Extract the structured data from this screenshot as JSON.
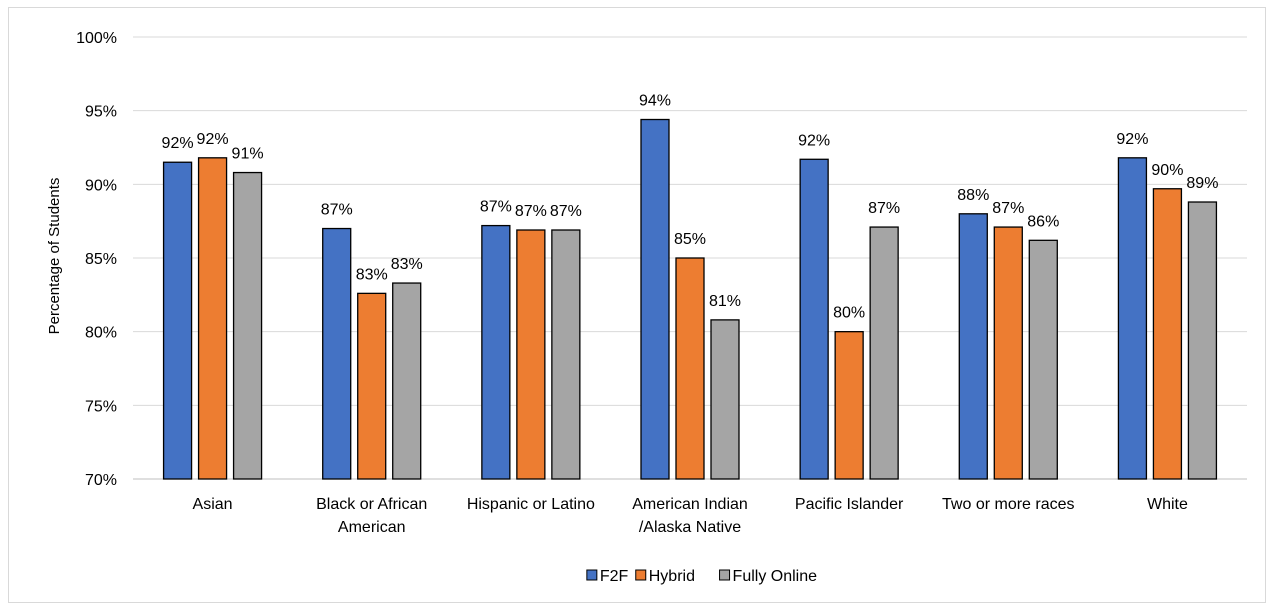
{
  "chart_data": {
    "type": "bar",
    "title": "",
    "xlabel": "",
    "ylabel": "Percentage of Students",
    "ylim": [
      70,
      100
    ],
    "yticks": [
      70,
      75,
      80,
      85,
      90,
      95,
      100
    ],
    "ytick_labels": [
      "70%",
      "75%",
      "80%",
      "85%",
      "90%",
      "95%",
      "100%"
    ],
    "grid": true,
    "legend_position": "bottom-center",
    "categories": [
      [
        "Asian"
      ],
      [
        "Black or African",
        "American"
      ],
      [
        "Hispanic or Latino"
      ],
      [
        "American Indian",
        "/Alaska Native"
      ],
      [
        "Pacific Islander"
      ],
      [
        "Two or more races"
      ],
      [
        "White"
      ]
    ],
    "series": [
      {
        "name": "F2F",
        "color": "#4472c4",
        "values": [
          91.5,
          87.0,
          87.2,
          94.4,
          91.7,
          88.0,
          91.8
        ],
        "labels": [
          "92%",
          "87%",
          "87%",
          "94%",
          "92%",
          "88%",
          "92%"
        ]
      },
      {
        "name": "Hybrid",
        "color": "#ed7d31",
        "values": [
          91.8,
          82.6,
          86.9,
          85.0,
          80.0,
          87.1,
          89.7
        ],
        "labels": [
          "92%",
          "83%",
          "87%",
          "85%",
          "80%",
          "87%",
          "90%"
        ]
      },
      {
        "name": "Fully Online",
        "color": "#a5a5a5",
        "values": [
          90.8,
          83.3,
          86.9,
          80.8,
          87.1,
          86.2,
          88.8
        ],
        "labels": [
          "91%",
          "83%",
          "87%",
          "81%",
          "87%",
          "86%",
          "89%"
        ]
      }
    ]
  }
}
